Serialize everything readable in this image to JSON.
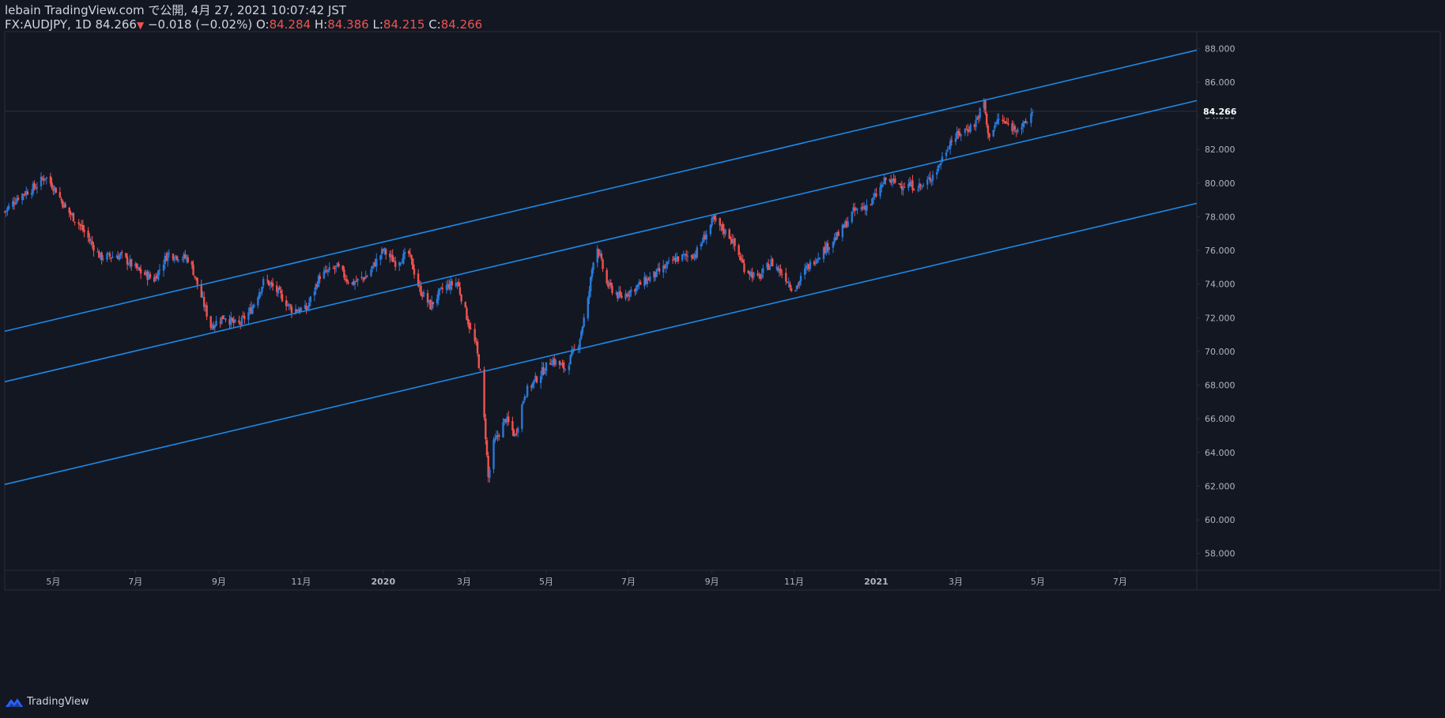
{
  "header": {
    "published": "lebain TradingView.com で公開, 4月 27, 2021 10:07:42 JST",
    "symbol": "FX:AUDJPY, 1D",
    "last": "84.266",
    "change_arrow": "▼",
    "change": "−0.018 (−0.02%)",
    "o_label": "O:",
    "o": "84.284",
    "h_label": "H:",
    "h": "84.386",
    "l_label": "L:",
    "l": "84.215",
    "c_label": "C:",
    "c": "84.266"
  },
  "footer": {
    "brand": "TradingView"
  },
  "colors": {
    "background": "#131722",
    "up": "#2979d8",
    "down": "#ef5350",
    "channel": "#1e88e5",
    "axis_text": "#b2b5be",
    "border": "#2a2e39"
  },
  "chart_data": {
    "type": "candlestick",
    "symbol": "FX:AUDJPY",
    "interval": "1D",
    "y_axis": {
      "ylim": [
        57.0,
        89.0
      ],
      "ticks": [
        "58.000",
        "60.000",
        "62.000",
        "64.000",
        "66.000",
        "68.000",
        "70.000",
        "72.000",
        "74.000",
        "76.000",
        "78.000",
        "80.000",
        "82.000",
        "84.000",
        "86.000",
        "88.000"
      ],
      "last_price_label": "84.266",
      "last_price": 84.266
    },
    "x_axis": {
      "xlim": [
        "2019-03-26",
        "2021-08-27"
      ],
      "ticks": [
        {
          "label": "5月",
          "date": "2019-05-01"
        },
        {
          "label": "7月",
          "date": "2019-07-01"
        },
        {
          "label": "9月",
          "date": "2019-09-01"
        },
        {
          "label": "11月",
          "date": "2019-11-01"
        },
        {
          "label": "2020",
          "date": "2020-01-01"
        },
        {
          "label": "3月",
          "date": "2020-03-01"
        },
        {
          "label": "5月",
          "date": "2020-05-01"
        },
        {
          "label": "7月",
          "date": "2020-07-01"
        },
        {
          "label": "9月",
          "date": "2020-09-01"
        },
        {
          "label": "11月",
          "date": "2020-11-01"
        },
        {
          "label": "2021",
          "date": "2021-01-01"
        },
        {
          "label": "3月",
          "date": "2021-03-01"
        },
        {
          "label": "5月",
          "date": "2021-05-01"
        },
        {
          "label": "7月",
          "date": "2021-07-01"
        }
      ]
    },
    "price_path": [
      [
        "2019-03-26",
        78.3
      ],
      [
        "2019-04-05",
        79.2
      ],
      [
        "2019-04-18",
        79.8
      ],
      [
        "2019-04-25",
        80.4
      ],
      [
        "2019-05-03",
        79.6
      ],
      [
        "2019-05-10",
        78.5
      ],
      [
        "2019-05-20",
        77.6
      ],
      [
        "2019-05-28",
        76.6
      ],
      [
        "2019-06-05",
        75.6
      ],
      [
        "2019-06-20",
        75.7
      ],
      [
        "2019-07-05",
        74.7
      ],
      [
        "2019-07-15",
        74.3
      ],
      [
        "2019-07-25",
        75.8
      ],
      [
        "2019-08-10",
        75.5
      ],
      [
        "2019-08-20",
        73.0
      ],
      [
        "2019-08-26",
        71.5
      ],
      [
        "2019-09-05",
        72.1
      ],
      [
        "2019-09-15",
        71.5
      ],
      [
        "2019-09-25",
        72.5
      ],
      [
        "2019-10-05",
        74.3
      ],
      [
        "2019-10-15",
        73.5
      ],
      [
        "2019-10-25",
        72.5
      ],
      [
        "2019-11-05",
        72.5
      ],
      [
        "2019-11-15",
        74.5
      ],
      [
        "2019-11-28",
        75.0
      ],
      [
        "2019-12-08",
        74.0
      ],
      [
        "2019-12-20",
        74.5
      ],
      [
        "2020-01-01",
        76.0
      ],
      [
        "2020-01-10",
        75.3
      ],
      [
        "2020-01-20",
        75.8
      ],
      [
        "2020-01-28",
        73.7
      ],
      [
        "2020-02-05",
        72.7
      ],
      [
        "2020-02-15",
        73.8
      ],
      [
        "2020-02-25",
        74.1
      ],
      [
        "2020-03-05",
        71.5
      ],
      [
        "2020-03-10",
        70.3
      ],
      [
        "2020-03-13",
        68.7
      ],
      [
        "2020-03-17",
        65.0
      ],
      [
        "2020-03-19",
        62.5
      ],
      [
        "2020-03-23",
        64.5
      ],
      [
        "2020-04-01",
        66.0
      ],
      [
        "2020-04-08",
        65.0
      ],
      [
        "2020-04-15",
        67.5
      ],
      [
        "2020-04-25",
        68.5
      ],
      [
        "2020-05-05",
        69.5
      ],
      [
        "2020-05-15",
        69.0
      ],
      [
        "2020-05-25",
        70.5
      ],
      [
        "2020-06-01",
        73.0
      ],
      [
        "2020-06-05",
        75.5
      ],
      [
        "2020-06-08",
        76.2
      ],
      [
        "2020-06-15",
        74.0
      ],
      [
        "2020-06-25",
        73.2
      ],
      [
        "2020-07-10",
        74.0
      ],
      [
        "2020-07-25",
        74.8
      ],
      [
        "2020-08-05",
        75.5
      ],
      [
        "2020-08-20",
        75.8
      ],
      [
        "2020-09-02",
        77.8
      ],
      [
        "2020-09-15",
        76.8
      ],
      [
        "2020-09-25",
        75.0
      ],
      [
        "2020-10-05",
        74.3
      ],
      [
        "2020-10-15",
        75.3
      ],
      [
        "2020-10-25",
        74.5
      ],
      [
        "2020-11-01",
        73.6
      ],
      [
        "2020-11-10",
        74.9
      ],
      [
        "2020-11-20",
        75.8
      ],
      [
        "2020-12-05",
        77.0
      ],
      [
        "2020-12-15",
        78.3
      ],
      [
        "2020-12-28",
        78.8
      ],
      [
        "2021-01-08",
        80.2
      ],
      [
        "2021-01-20",
        79.9
      ],
      [
        "2021-02-05",
        79.8
      ],
      [
        "2021-02-15",
        80.8
      ],
      [
        "2021-02-25",
        82.5
      ],
      [
        "2021-03-05",
        83.0
      ],
      [
        "2021-03-15",
        83.5
      ],
      [
        "2021-03-22",
        84.8
      ],
      [
        "2021-03-25",
        82.8
      ],
      [
        "2021-04-02",
        83.8
      ],
      [
        "2021-04-12",
        83.3
      ],
      [
        "2021-04-21",
        83.4
      ],
      [
        "2021-04-27",
        84.27
      ]
    ],
    "channel_lines": [
      {
        "points": [
          [
            "2019-03-26",
            71.2
          ],
          [
            "2021-08-27",
            87.9
          ]
        ]
      },
      {
        "points": [
          [
            "2019-03-26",
            68.2
          ],
          [
            "2021-08-27",
            84.9
          ]
        ]
      },
      {
        "points": [
          [
            "2019-03-26",
            62.1
          ],
          [
            "2021-08-27",
            78.8
          ]
        ]
      }
    ]
  }
}
